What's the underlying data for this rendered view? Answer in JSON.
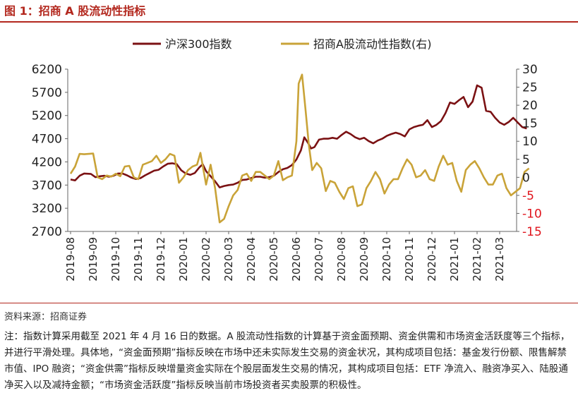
{
  "figure_title": "图 1：招商 A 股流动性指标",
  "source": "资料来源：招商证券",
  "note": "注：指数计算采用截至 2021 年 4 月 16 日的数据。A 股流动性指数的计算基于资金面预期、资金供需和市场资金活跃度等三个指标，并进行平滑处理。具体地，“资金面预期”指标反映在市场中还未实际发生交易的资金状况，其构成项目包括：基金发行份额、限售解禁市值、IPO 融资；“资金供需”指标反映增量资金实际在个股层面发生交易的情况，其构成项目包括：ETF 净流入、融资净买入、陆股通净买入以及减持金额；“市场资金活跃度”指标反映当前市场投资者买卖股票的积极性。",
  "colors": {
    "accent": "#b3281e",
    "hs300": "#7b1113",
    "liquidity": "#c9a338",
    "right_axis": "#e0141c"
  },
  "chart_data": {
    "type": "line",
    "x_ticks": [
      "2019-08",
      "2019-09",
      "2019-10",
      "2019-11",
      "2019-12",
      "2020-01",
      "2020-02",
      "2020-03",
      "2020-04",
      "2020-05",
      "2020-06",
      "2020-07",
      "2020-08",
      "2020-09",
      "2020-10",
      "2020-11",
      "2020-12",
      "2021-01",
      "2021-02",
      "2021-03"
    ],
    "x_range": [
      0,
      20.5
    ],
    "y_left": {
      "min": 2700,
      "max": 6200,
      "ticks": [
        2700,
        3200,
        3700,
        4200,
        4700,
        5200,
        5700,
        6200
      ]
    },
    "y_right": {
      "min": -15,
      "max": 30,
      "ticks": [
        -15,
        -10,
        -5,
        0,
        5,
        10,
        15,
        20,
        25,
        30
      ]
    },
    "legend": "top",
    "series": [
      {
        "name": "沪深300指数",
        "axis": "left",
        "color": "#7b1113",
        "points": [
          [
            0,
            3820
          ],
          [
            0.2,
            3800
          ],
          [
            0.4,
            3900
          ],
          [
            0.6,
            3950
          ],
          [
            0.9,
            3940
          ],
          [
            1.1,
            3870
          ],
          [
            1.3,
            3890
          ],
          [
            1.5,
            3900
          ],
          [
            1.7,
            3880
          ],
          [
            1.9,
            3900
          ],
          [
            2.1,
            3950
          ],
          [
            2.3,
            3950
          ],
          [
            2.5,
            3910
          ],
          [
            2.7,
            3860
          ],
          [
            2.9,
            3830
          ],
          [
            3.1,
            3850
          ],
          [
            3.3,
            3910
          ],
          [
            3.5,
            3960
          ],
          [
            3.7,
            4010
          ],
          [
            3.9,
            4030
          ],
          [
            4.1,
            4100
          ],
          [
            4.3,
            4160
          ],
          [
            4.5,
            4170
          ],
          [
            4.7,
            4150
          ],
          [
            4.9,
            4020
          ],
          [
            5.1,
            3950
          ],
          [
            5.3,
            3920
          ],
          [
            5.5,
            3960
          ],
          [
            5.7,
            4080
          ],
          [
            5.85,
            4150
          ],
          [
            6.0,
            4000
          ],
          [
            6.2,
            3890
          ],
          [
            6.4,
            3780
          ],
          [
            6.6,
            3650
          ],
          [
            6.8,
            3680
          ],
          [
            7.0,
            3700
          ],
          [
            7.2,
            3710
          ],
          [
            7.4,
            3750
          ],
          [
            7.6,
            3810
          ],
          [
            7.8,
            3820
          ],
          [
            8.0,
            3850
          ],
          [
            8.2,
            3880
          ],
          [
            8.4,
            3880
          ],
          [
            8.6,
            3860
          ],
          [
            8.8,
            3870
          ],
          [
            9.0,
            3900
          ],
          [
            9.2,
            3980
          ],
          [
            9.4,
            4040
          ],
          [
            9.6,
            4070
          ],
          [
            9.8,
            4130
          ],
          [
            10.0,
            4250
          ],
          [
            10.2,
            4450
          ],
          [
            10.35,
            4730
          ],
          [
            10.5,
            4620
          ],
          [
            10.65,
            4490
          ],
          [
            10.8,
            4520
          ],
          [
            11.0,
            4680
          ],
          [
            11.2,
            4700
          ],
          [
            11.4,
            4700
          ],
          [
            11.6,
            4720
          ],
          [
            11.8,
            4700
          ],
          [
            12.0,
            4780
          ],
          [
            12.2,
            4850
          ],
          [
            12.4,
            4800
          ],
          [
            12.6,
            4730
          ],
          [
            12.8,
            4690
          ],
          [
            13.0,
            4720
          ],
          [
            13.2,
            4650
          ],
          [
            13.4,
            4600
          ],
          [
            13.6,
            4660
          ],
          [
            13.8,
            4700
          ],
          [
            14.0,
            4760
          ],
          [
            14.2,
            4800
          ],
          [
            14.4,
            4830
          ],
          [
            14.6,
            4800
          ],
          [
            14.8,
            4750
          ],
          [
            15.0,
            4900
          ],
          [
            15.2,
            4950
          ],
          [
            15.4,
            4980
          ],
          [
            15.6,
            5000
          ],
          [
            15.8,
            5100
          ],
          [
            16.0,
            4950
          ],
          [
            16.2,
            5000
          ],
          [
            16.4,
            5080
          ],
          [
            16.6,
            5250
          ],
          [
            16.8,
            5480
          ],
          [
            17.0,
            5450
          ],
          [
            17.2,
            5530
          ],
          [
            17.4,
            5600
          ],
          [
            17.6,
            5380
          ],
          [
            17.8,
            5500
          ],
          [
            18.0,
            5850
          ],
          [
            18.2,
            5800
          ],
          [
            18.4,
            5300
          ],
          [
            18.6,
            5280
          ],
          [
            18.8,
            5150
          ],
          [
            19.0,
            5050
          ],
          [
            19.2,
            5000
          ],
          [
            19.4,
            5060
          ],
          [
            19.6,
            5150
          ],
          [
            19.8,
            5050
          ],
          [
            20.0,
            4950
          ],
          [
            20.2,
            4920
          ]
        ]
      },
      {
        "name": "招商A股流动性指数(右)",
        "axis": "right",
        "color": "#c9a338",
        "points": [
          [
            0,
            1
          ],
          [
            0.2,
            3
          ],
          [
            0.4,
            6.5
          ],
          [
            0.6,
            6.4
          ],
          [
            0.8,
            6.5
          ],
          [
            1.0,
            6.6
          ],
          [
            1.2,
            0
          ],
          [
            1.4,
            -0.5
          ],
          [
            1.6,
            0.5
          ],
          [
            1.8,
            0.2
          ],
          [
            2.0,
            1
          ],
          [
            2.2,
            0.3
          ],
          [
            2.4,
            3
          ],
          [
            2.6,
            3.2
          ],
          [
            2.8,
            0
          ],
          [
            3.0,
            -0.5
          ],
          [
            3.2,
            3.5
          ],
          [
            3.4,
            4
          ],
          [
            3.6,
            4.5
          ],
          [
            3.8,
            6
          ],
          [
            4.0,
            4
          ],
          [
            4.2,
            5
          ],
          [
            4.4,
            6.5
          ],
          [
            4.6,
            6
          ],
          [
            4.8,
            -1.5
          ],
          [
            5.0,
            0
          ],
          [
            5.2,
            2
          ],
          [
            5.4,
            3
          ],
          [
            5.6,
            3.5
          ],
          [
            5.75,
            6.8
          ],
          [
            5.9,
            1.5
          ],
          [
            6.0,
            -2
          ],
          [
            6.2,
            3.5
          ],
          [
            6.4,
            -3
          ],
          [
            6.6,
            -12.5
          ],
          [
            6.8,
            -11.5
          ],
          [
            7.0,
            -8
          ],
          [
            7.2,
            -5
          ],
          [
            7.4,
            -3.5
          ],
          [
            7.6,
            0.5
          ],
          [
            7.8,
            1
          ],
          [
            8.0,
            -1
          ],
          [
            8.2,
            1.5
          ],
          [
            8.4,
            1.5
          ],
          [
            8.6,
            0.5
          ],
          [
            8.8,
            -0.5
          ],
          [
            9.0,
            0.5
          ],
          [
            9.2,
            4.5
          ],
          [
            9.4,
            -0.8
          ],
          [
            9.6,
            0
          ],
          [
            9.8,
            0.5
          ],
          [
            10.0,
            10
          ],
          [
            10.1,
            26
          ],
          [
            10.25,
            28.5
          ],
          [
            10.4,
            19
          ],
          [
            10.55,
            9
          ],
          [
            10.7,
            2
          ],
          [
            10.9,
            4
          ],
          [
            11.1,
            2.5
          ],
          [
            11.3,
            -3.8
          ],
          [
            11.5,
            -1
          ],
          [
            11.7,
            -1.5
          ],
          [
            11.9,
            -4
          ],
          [
            12.1,
            -6
          ],
          [
            12.3,
            -3
          ],
          [
            12.5,
            -2.5
          ],
          [
            12.7,
            -8
          ],
          [
            12.9,
            -7.5
          ],
          [
            13.1,
            -3
          ],
          [
            13.3,
            -1
          ],
          [
            13.5,
            1.5
          ],
          [
            13.7,
            -0.5
          ],
          [
            13.9,
            -4.5
          ],
          [
            14.1,
            -2
          ],
          [
            14.3,
            -0.5
          ],
          [
            14.5,
            -0.5
          ],
          [
            14.7,
            2.5
          ],
          [
            14.9,
            5
          ],
          [
            15.1,
            3.5
          ],
          [
            15.3,
            0
          ],
          [
            15.5,
            0.5
          ],
          [
            15.7,
            2
          ],
          [
            15.9,
            -0.5
          ],
          [
            16.1,
            -1
          ],
          [
            16.3,
            3
          ],
          [
            16.5,
            6
          ],
          [
            16.7,
            3.5
          ],
          [
            16.9,
            4
          ],
          [
            17.1,
            -1
          ],
          [
            17.3,
            -4
          ],
          [
            17.5,
            2
          ],
          [
            17.7,
            3.5
          ],
          [
            17.9,
            4.5
          ],
          [
            18.1,
            2.5
          ],
          [
            18.3,
            0
          ],
          [
            18.5,
            -2
          ],
          [
            18.7,
            -2
          ],
          [
            18.9,
            0.5
          ],
          [
            19.1,
            1
          ],
          [
            19.3,
            -3
          ],
          [
            19.5,
            -5
          ],
          [
            19.7,
            -4
          ],
          [
            19.9,
            -3
          ],
          [
            20.1,
            1.5
          ],
          [
            20.3,
            2.5
          ]
        ]
      }
    ]
  }
}
